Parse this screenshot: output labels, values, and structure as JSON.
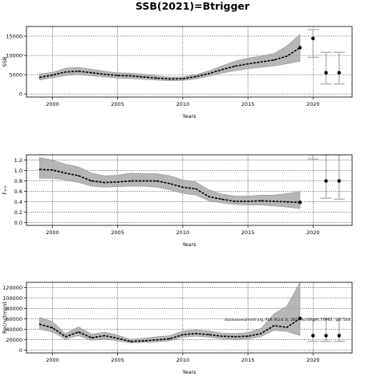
{
  "figure": {
    "title": "SSB(2021)=Btrigger"
  },
  "chart_data": [
    {
      "type": "line",
      "ylabel": "SSB",
      "xlabel": "Years",
      "xlim": [
        1998,
        2023
      ],
      "ylim": [
        -800,
        17500
      ],
      "xticks": [
        2000,
        2005,
        2010,
        2015,
        2020
      ],
      "yticks": [
        0,
        5000,
        10000,
        15000
      ],
      "ytick_labels": [
        "0",
        "5000",
        "10000",
        "15000"
      ],
      "grid": true,
      "years": [
        1999,
        2000,
        2001,
        2002,
        2003,
        2004,
        2005,
        2006,
        2007,
        2008,
        2009,
        2010,
        2011,
        2012,
        2013,
        2014,
        2015,
        2016,
        2017,
        2018,
        2019
      ],
      "median": [
        4300,
        4900,
        5700,
        5900,
        5500,
        5100,
        4800,
        4700,
        4400,
        4100,
        3900,
        3950,
        4500,
        5300,
        6300,
        7200,
        7800,
        8300,
        8800,
        9800,
        12000
      ],
      "lower": [
        3600,
        4200,
        4800,
        5000,
        4700,
        4400,
        4100,
        4000,
        3800,
        3600,
        3400,
        3500,
        3900,
        4600,
        5400,
        6000,
        6500,
        6900,
        7300,
        7800,
        8500
      ],
      "upper": [
        5200,
        5600,
        6700,
        6900,
        6400,
        5900,
        5500,
        5400,
        5100,
        4700,
        4400,
        4400,
        5000,
        6000,
        7300,
        8500,
        9300,
        9800,
        10500,
        12500,
        15500
      ],
      "forecast": [
        {
          "year": 2020,
          "median": 14400,
          "lower": 9500,
          "upper": 16700
        },
        {
          "year": 2021,
          "median": 5500,
          "lower": 2600,
          "upper": 10800
        },
        {
          "year": 2022,
          "median": 5500,
          "lower": 2600,
          "upper": 10800
        }
      ]
    },
    {
      "type": "line",
      "ylabel": "F₃-₅",
      "xlabel": "Years",
      "xlim": [
        1998,
        2023
      ],
      "ylim": [
        -0.05,
        1.3
      ],
      "xticks": [
        2000,
        2005,
        2010,
        2015,
        2020
      ],
      "yticks": [
        0.0,
        0.2,
        0.4,
        0.6,
        0.8,
        1.0,
        1.2
      ],
      "ytick_labels": [
        "0.0",
        "0.2",
        "0.4",
        "0.6",
        "0.8",
        "1.0",
        "1.2"
      ],
      "grid": true,
      "years": [
        1999,
        2000,
        2001,
        2002,
        2003,
        2004,
        2005,
        2006,
        2007,
        2008,
        2009,
        2010,
        2011,
        2012,
        2013,
        2014,
        2015,
        2016,
        2017,
        2018,
        2019
      ],
      "median": [
        1.02,
        1.01,
        0.95,
        0.9,
        0.8,
        0.77,
        0.78,
        0.8,
        0.8,
        0.8,
        0.75,
        0.68,
        0.65,
        0.5,
        0.45,
        0.41,
        0.41,
        0.42,
        0.41,
        0.4,
        0.39
      ],
      "lower": [
        0.85,
        0.85,
        0.82,
        0.77,
        0.7,
        0.68,
        0.69,
        0.7,
        0.7,
        0.68,
        0.63,
        0.56,
        0.53,
        0.42,
        0.38,
        0.35,
        0.34,
        0.34,
        0.32,
        0.3,
        0.27
      ],
      "upper": [
        1.25,
        1.2,
        1.12,
        1.07,
        0.95,
        0.9,
        0.91,
        0.95,
        0.94,
        0.94,
        0.9,
        0.82,
        0.78,
        0.63,
        0.55,
        0.51,
        0.51,
        0.53,
        0.53,
        0.56,
        0.6
      ],
      "forecast": [
        {
          "year": 2020,
          "median": null,
          "lower": 1.22,
          "upper": 1.3
        },
        {
          "year": 2021,
          "median": 0.8,
          "lower": 0.47,
          "upper": 1.3
        },
        {
          "year": 2022,
          "median": 0.8,
          "lower": 0.45,
          "upper": 1.3
        }
      ]
    },
    {
      "type": "line",
      "ylabel": "Recruitment",
      "xlabel": "Years",
      "xlim": [
        1998,
        2023
      ],
      "ylim": [
        -5000,
        130000
      ],
      "xticks": [
        2000,
        2005,
        2010,
        2015,
        2020
      ],
      "yticks": [
        0,
        20000,
        40000,
        60000,
        80000,
        100000,
        120000
      ],
      "ytick_labels": [
        "0",
        "20000",
        "40000",
        "60000",
        "80000",
        "100000",
        "120000"
      ],
      "grid": true,
      "years": [
        1999,
        2000,
        2001,
        2002,
        2003,
        2004,
        2005,
        2006,
        2007,
        2008,
        2009,
        2010,
        2011,
        2012,
        2013,
        2014,
        2015,
        2016,
        2017,
        2018,
        2019
      ],
      "median": [
        50000,
        43000,
        26000,
        35000,
        24000,
        28000,
        23000,
        17000,
        18000,
        20000,
        22000,
        30000,
        32000,
        30000,
        27000,
        26000,
        27000,
        32000,
        47000,
        44000,
        61000
      ],
      "lower": [
        40000,
        35000,
        21000,
        28000,
        19000,
        22000,
        18000,
        14000,
        15000,
        16000,
        18000,
        25000,
        27000,
        25000,
        22000,
        21000,
        22000,
        26000,
        38000,
        36000,
        28000
      ],
      "upper": [
        63000,
        55000,
        32000,
        45000,
        31000,
        35000,
        29000,
        21000,
        23000,
        26000,
        28000,
        37000,
        39000,
        37000,
        33000,
        32000,
        34000,
        42000,
        70000,
        85000,
        130000
      ],
      "forecast": [
        {
          "year": 2020,
          "median": 28000,
          "lower": 17000,
          "upper": 61000
        },
        {
          "year": 2021,
          "median": 28000,
          "lower": 17000,
          "upper": 61000
        },
        {
          "year": 2022,
          "median": 28000,
          "lower": 17000,
          "upper": 61000
        }
      ],
      "annotation": "stockassessment.org, FLR (R3.6.1), 2019.4changes_f.0962 , git: 503..."
    }
  ]
}
